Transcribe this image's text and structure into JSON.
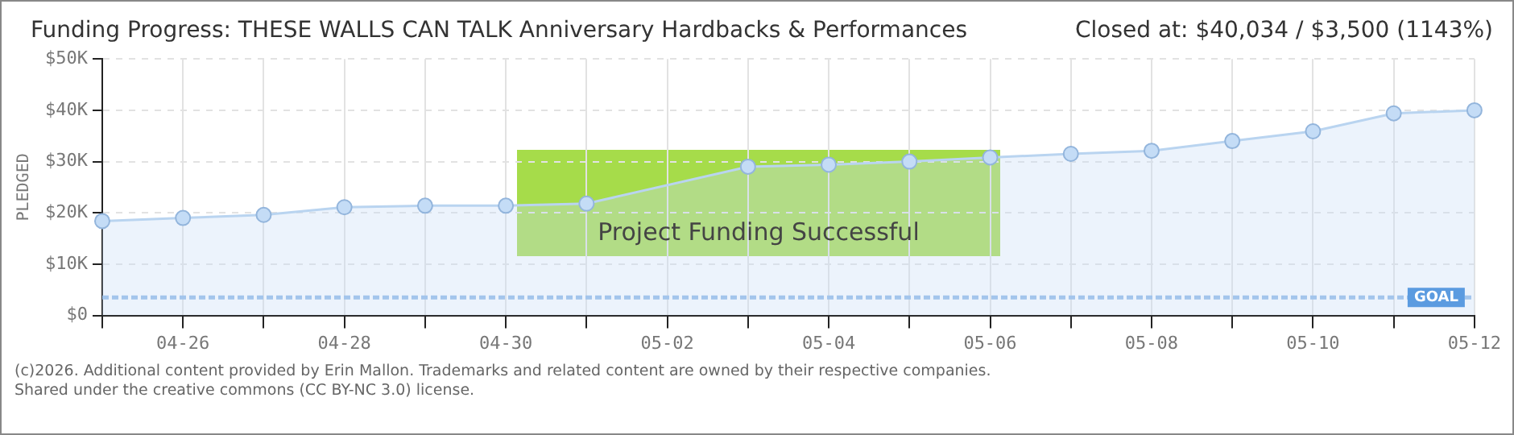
{
  "chart_data": {
    "type": "area",
    "title": "Funding Progress: THESE WALLS CAN TALK Anniversary Hardbacks & Performances",
    "subtitle": "Closed at: $40,034 / $3,500 (1143%)",
    "ylabel": "PLEDGED",
    "categories": [
      null,
      "04-26",
      null,
      "04-28",
      null,
      "04-30",
      null,
      "05-02",
      null,
      "05-04",
      null,
      "05-06",
      null,
      "05-08",
      null,
      "05-10",
      null,
      "05-12"
    ],
    "series": [
      {
        "color": "#b9d4f0",
        "values": [
          18400,
          19000,
          19600,
          21100,
          21400,
          21400,
          21800,
          null,
          29000,
          29400,
          30000,
          30800,
          31500,
          32100,
          34000,
          35900,
          39400,
          40000
        ]
      }
    ],
    "ylim": [
      0,
      50000
    ],
    "yticks": [
      {
        "value": 0,
        "label": "$0"
      },
      {
        "value": 10000,
        "label": "$10K"
      },
      {
        "value": 20000,
        "label": "$20K"
      },
      {
        "value": 30000,
        "label": "$30K"
      },
      {
        "value": 40000,
        "label": "$40K"
      },
      {
        "value": 50000,
        "label": "$50K"
      }
    ],
    "ref_lines": [
      {
        "axis": "y",
        "value": 3500,
        "label": "GOAL",
        "color": "#8fb8e6",
        "line_style": "dashed"
      }
    ],
    "annotations": [
      "Project Funding Successful",
      "(c)2026. Additional content provided by Erin Mallon. Trademarks and related content are owned by their respective companies.",
      "Shared under the creative commons (CC BY-NC 3.0) license."
    ],
    "grid": true,
    "marker": "circle",
    "legend": false
  }
}
